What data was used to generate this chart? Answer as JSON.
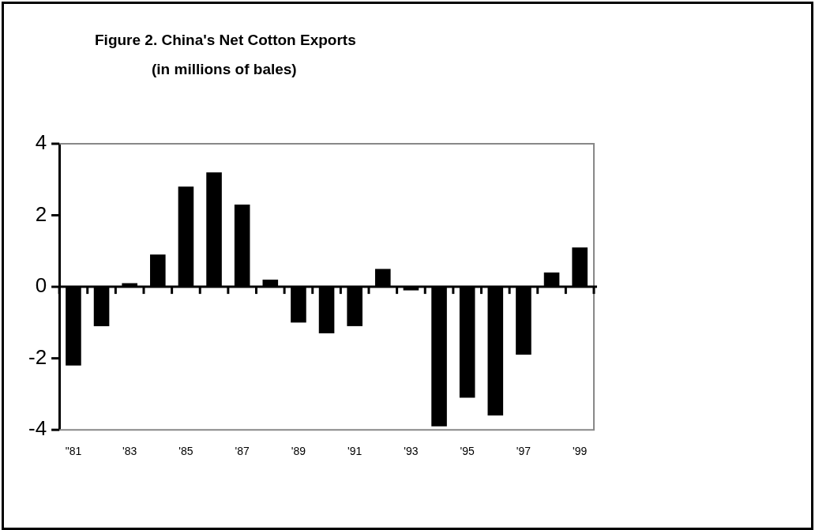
{
  "chart_data": {
    "type": "bar",
    "title": "Figure 2. China's Net Cotton Exports",
    "subtitle": "(in millions of bales)",
    "categories": [
      "\"81",
      null,
      "'83",
      null,
      "'85",
      null,
      "'87",
      null,
      "'89",
      null,
      "'91",
      null,
      "'93",
      null,
      "'95",
      null,
      "'97",
      null,
      "'99"
    ],
    "values": [
      -2.2,
      -1.1,
      0.1,
      0.9,
      2.8,
      3.2,
      2.3,
      0.2,
      -1.0,
      -1.3,
      -1.1,
      0.5,
      -0.1,
      -3.9,
      -3.1,
      -3.6,
      -1.9,
      0.4,
      1.1
    ],
    "color": "#000000",
    "ylim": [
      -4,
      4
    ],
    "yticks": [
      -4,
      -2,
      0,
      2,
      4
    ],
    "legend": false
  }
}
